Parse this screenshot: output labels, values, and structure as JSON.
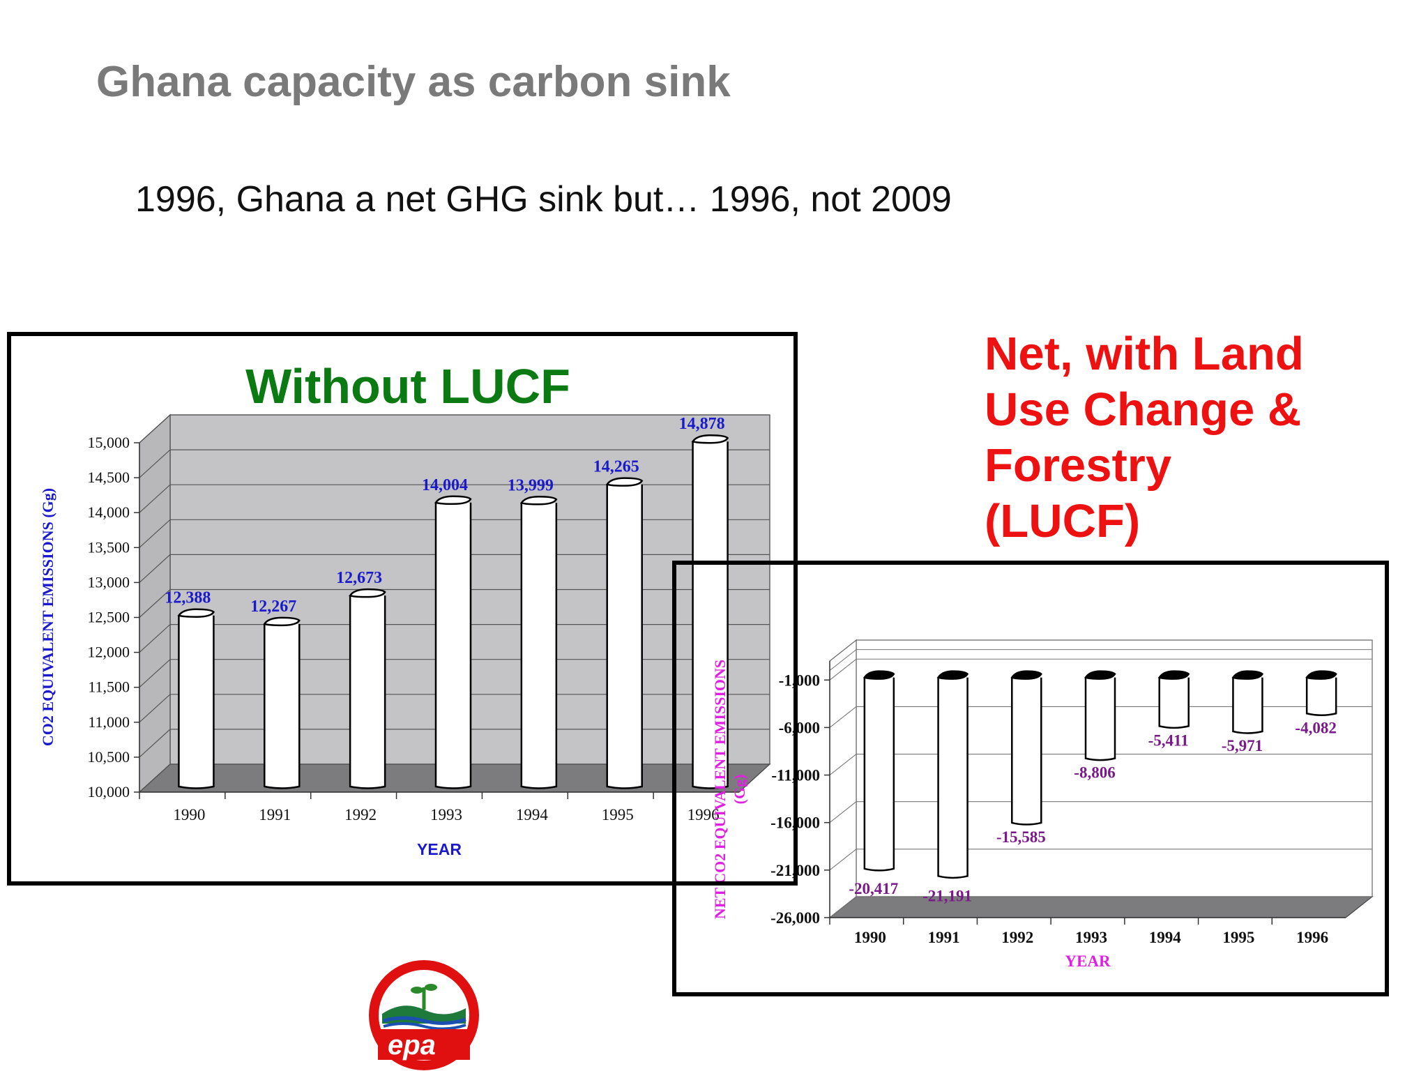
{
  "slide": {
    "title": "Ghana capacity as carbon sink",
    "subtitle": "1996, Ghana a net GHG sink but… 1996, not 2009",
    "right_heading_lines": [
      "Net, with Land",
      "Use Change &",
      "Forestry",
      "(LUCF)"
    ],
    "logo_text": "epa"
  },
  "colors": {
    "title_gray": "#7a7a7a",
    "without_title_green": "#0b7a12",
    "net_title_red": "#ee1111",
    "left_labels_blue": "#1a1acc",
    "right_labels_purple": "#7a1a8a",
    "right_axis_magenta": "#e020e0",
    "plot_gray": "#c4c4c6",
    "floor_gray": "#7c7c7e"
  },
  "chart_data": [
    {
      "type": "bar",
      "title": "Without LUCF",
      "xlabel": "YEAR",
      "ylabel": "CO2 EQUIVALENT EMISSIONS (Gg)",
      "categories": [
        "1990",
        "1991",
        "1992",
        "1993",
        "1994",
        "1995",
        "1996"
      ],
      "values": [
        12388,
        12267,
        12673,
        14004,
        13999,
        14265,
        14878
      ],
      "value_labels": [
        "12,388",
        "12,267",
        "12,673",
        "14,004",
        "13,999",
        "14,265",
        "14,878"
      ],
      "ylim": [
        10000,
        15000
      ],
      "yticks": [
        10000,
        10500,
        11000,
        11500,
        12000,
        12500,
        13000,
        13500,
        14000,
        14500,
        15000
      ],
      "ytick_labels": [
        "10,000",
        "10,500",
        "11,000",
        "11,500",
        "12,000",
        "12,500",
        "13,000",
        "13,500",
        "14,000",
        "14,500",
        "15,000"
      ],
      "grid": true,
      "style": "3d cylinder"
    },
    {
      "type": "bar",
      "title": "",
      "xlabel": "YEAR",
      "ylabel": "NET CO2 EQUIVALENT EMISSIONS (Gg)",
      "categories": [
        "1990",
        "1991",
        "1992",
        "1993",
        "1994",
        "1995",
        "1996"
      ],
      "values": [
        -20417,
        -21191,
        -15585,
        -8806,
        -5411,
        -5971,
        -4082
      ],
      "value_labels": [
        "-20,417",
        "-21,191",
        "-15,585",
        "-8,806",
        "-5,411",
        "-5,971",
        "-4,082"
      ],
      "ylim": [
        -26000,
        1000
      ],
      "yticks": [
        -26000,
        -21000,
        -16000,
        -11000,
        -6000,
        -1000
      ],
      "ytick_labels": [
        "-26,000",
        "-21,000",
        "-16,000",
        "-11,000",
        "-6,000",
        "-1,000"
      ],
      "grid": true,
      "style": "3d cylinder"
    }
  ]
}
